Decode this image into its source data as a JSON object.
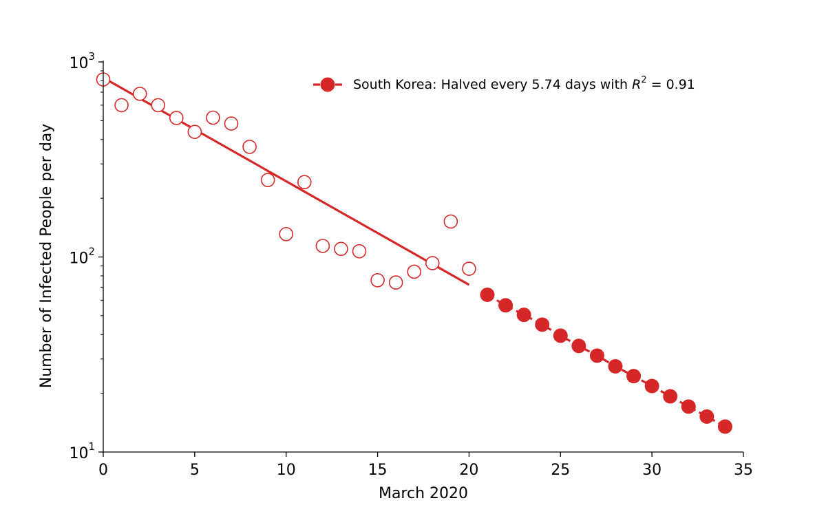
{
  "chart_data": {
    "type": "scatter",
    "title": "",
    "xlabel": "March 2020",
    "ylabel": "Number of Infected People per day",
    "xlim": [
      0,
      35
    ],
    "ylim": [
      10,
      1000
    ],
    "y_scale": "log",
    "grid": false,
    "legend_position": "top-right",
    "x_ticks": [
      0,
      5,
      10,
      15,
      20,
      25,
      30,
      35
    ],
    "y_ticks": [
      {
        "value": 10,
        "base": "10",
        "exponent": "1"
      },
      {
        "value": 100,
        "base": "10",
        "exponent": "2"
      },
      {
        "value": 1000,
        "base": "10",
        "exponent": "3"
      }
    ],
    "color": "#d62728",
    "observed": {
      "x": [
        0,
        1,
        2,
        3,
        4,
        5,
        6,
        7,
        8,
        9,
        10,
        11,
        12,
        13,
        14,
        15,
        16,
        17,
        18,
        19,
        20
      ],
      "y": [
        813,
        600,
        686,
        600,
        516,
        438,
        518,
        483,
        367,
        248,
        131,
        242,
        114,
        110,
        107,
        76,
        74,
        84,
        93,
        152,
        87
      ]
    },
    "fit_line": {
      "x": [
        0,
        20
      ],
      "y": [
        830,
        72
      ]
    },
    "projection": {
      "x": [
        21,
        22,
        23,
        24,
        25,
        26,
        27,
        28,
        29,
        30,
        31,
        32,
        33,
        34
      ],
      "y": [
        64,
        56.5,
        50.5,
        45,
        39.5,
        35,
        31.2,
        27.5,
        24.5,
        21.8,
        19.3,
        17.1,
        15.2,
        13.5
      ]
    },
    "legend": {
      "label_prefix": "South Korea: Halved every 5.74 days with ",
      "r_symbol": "R",
      "r_exponent": "2",
      "label_suffix": " = 0.91"
    }
  }
}
